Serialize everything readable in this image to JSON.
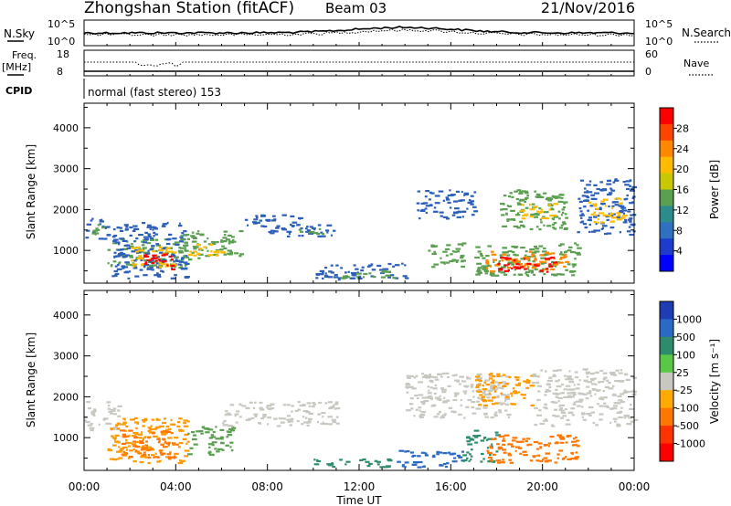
{
  "header": {
    "station": "Zhongshan Station (fitACF)",
    "beam": "Beam 03",
    "date": "21/Nov/2016"
  },
  "top_panels": {
    "nsky_label": "N.Sky",
    "nsky_ticks": [
      "10^5",
      "10^0"
    ],
    "nsearch_label": "N.Search",
    "nsearch_ticks": [
      "10^5",
      "10^0"
    ],
    "freq_label_1": "Freq.",
    "freq_label_2": "[MHz]",
    "freq_ticks": [
      "18",
      "8"
    ],
    "nave_label": "Nave",
    "nave_ticks": [
      "60",
      "0"
    ],
    "cpid_label": "CPID",
    "cpid_text": "normal (fast stereo) 153"
  },
  "chart_data": [
    {
      "type": "heatmap",
      "name": "power-panel",
      "ylabel": "Slant Range [km]",
      "xlabel": "",
      "x_ticks": [
        "00:00",
        "04:00",
        "08:00",
        "12:00",
        "16:00",
        "20:00",
        "00:00"
      ],
      "xlim_hours": [
        0,
        24
      ],
      "y_ticks": [
        1000,
        2000,
        3000,
        4000
      ],
      "ylim": [
        200,
        4600
      ],
      "colorbar": {
        "label": "Power [dB]",
        "ticks": [
          "28",
          "24",
          "20",
          "16",
          "12",
          "8",
          "4"
        ],
        "colors": [
          "#ff0000",
          "#ff4400",
          "#ff8800",
          "#ffbb00",
          "#c8c800",
          "#5aa050",
          "#2c8c8c",
          "#3070c0",
          "#1e3ccc",
          "#0000ff"
        ]
      },
      "regions": [
        {
          "t0": 0.0,
          "t1": 1.0,
          "r0": 1300,
          "r1": 1800,
          "color": "#2c5fb8"
        },
        {
          "t0": 0.3,
          "t1": 1.0,
          "r0": 1350,
          "r1": 1650,
          "color": "#5aa050"
        },
        {
          "t0": 1.0,
          "t1": 4.5,
          "r0": 600,
          "r1": 1300,
          "color": "#5aa050"
        },
        {
          "t0": 1.2,
          "t1": 4.5,
          "r0": 300,
          "r1": 1700,
          "color": "#2c5fb8"
        },
        {
          "t0": 2.0,
          "t1": 4.0,
          "r0": 600,
          "r1": 1100,
          "color": "#ffbb00"
        },
        {
          "t0": 2.5,
          "t1": 3.8,
          "r0": 550,
          "r1": 950,
          "color": "#ff0000"
        },
        {
          "t0": 4.0,
          "t1": 6.8,
          "r0": 800,
          "r1": 1500,
          "color": "#5aa050"
        },
        {
          "t0": 4.5,
          "t1": 6.0,
          "r0": 900,
          "r1": 1200,
          "color": "#ffbb00"
        },
        {
          "t0": 7.0,
          "t1": 9.5,
          "r0": 1600,
          "r1": 1900,
          "color": "#2c5fb8"
        },
        {
          "t0": 8.0,
          "t1": 11.0,
          "r0": 1350,
          "r1": 1650,
          "color": "#2c5fb8"
        },
        {
          "t0": 9.0,
          "t1": 10.5,
          "r0": 1400,
          "r1": 1550,
          "color": "#5aa050"
        },
        {
          "t0": 10.0,
          "t1": 14.0,
          "r0": 300,
          "r1": 700,
          "color": "#2c5fb8"
        },
        {
          "t0": 11.0,
          "t1": 13.5,
          "r0": 320,
          "r1": 520,
          "color": "#5aa050"
        },
        {
          "t0": 14.5,
          "t1": 17.0,
          "r0": 1800,
          "r1": 2500,
          "color": "#2c5fb8"
        },
        {
          "t0": 15.0,
          "t1": 16.5,
          "r0": 600,
          "r1": 1200,
          "color": "#5aa050"
        },
        {
          "t0": 17.0,
          "t1": 21.5,
          "r0": 400,
          "r1": 1200,
          "color": "#5aa050"
        },
        {
          "t0": 17.5,
          "t1": 21.0,
          "r0": 500,
          "r1": 1000,
          "color": "#ff8800"
        },
        {
          "t0": 18.0,
          "t1": 20.5,
          "r0": 500,
          "r1": 850,
          "color": "#ff0000"
        },
        {
          "t0": 18.0,
          "t1": 21.0,
          "r0": 1500,
          "r1": 2500,
          "color": "#5aa050"
        },
        {
          "t0": 19.0,
          "t1": 20.5,
          "r0": 1800,
          "r1": 2200,
          "color": "#ffbb00"
        },
        {
          "t0": 21.5,
          "t1": 24.0,
          "r0": 1400,
          "r1": 2800,
          "color": "#2c5fb8"
        },
        {
          "t0": 22.0,
          "t1": 23.5,
          "r0": 1700,
          "r1": 2300,
          "color": "#ffbb00"
        }
      ]
    },
    {
      "type": "heatmap",
      "name": "velocity-panel",
      "ylabel": "Slant Range [km]",
      "xlabel": "Time UT",
      "x_ticks": [
        "00:00",
        "04:00",
        "08:00",
        "12:00",
        "16:00",
        "20:00",
        "00:00"
      ],
      "xlim_hours": [
        0,
        24
      ],
      "y_ticks": [
        1000,
        2000,
        3000,
        4000
      ],
      "ylim": [
        200,
        4600
      ],
      "colorbar": {
        "label": "Velocity [m s⁻¹]",
        "ticks": [
          "1000",
          "500",
          "100",
          "25",
          "-25",
          "-100",
          "-500",
          "-1000"
        ],
        "colors": [
          "#1e3cb4",
          "#2a6ac4",
          "#2e8c6c",
          "#5ac846",
          "#c8c8c0",
          "#ffaa00",
          "#ff7700",
          "#ff3300",
          "#ff0000"
        ]
      },
      "regions": [
        {
          "t0": 0.0,
          "t1": 1.5,
          "r0": 1200,
          "r1": 1900,
          "color": "#c8c8c0"
        },
        {
          "t0": 1.0,
          "t1": 4.5,
          "r0": 400,
          "r1": 1500,
          "color": "#ff9900"
        },
        {
          "t0": 1.5,
          "t1": 4.0,
          "r0": 500,
          "r1": 1200,
          "color": "#ff7700"
        },
        {
          "t0": 4.5,
          "t1": 6.5,
          "r0": 600,
          "r1": 1300,
          "color": "#5aa050"
        },
        {
          "t0": 6.0,
          "t1": 11.0,
          "r0": 1300,
          "r1": 1900,
          "color": "#c8c8c0"
        },
        {
          "t0": 10.0,
          "t1": 13.5,
          "r0": 300,
          "r1": 500,
          "color": "#2e8c6c"
        },
        {
          "t0": 13.5,
          "t1": 16.5,
          "r0": 300,
          "r1": 700,
          "color": "#2a6ac4"
        },
        {
          "t0": 14.0,
          "t1": 18.5,
          "r0": 1500,
          "r1": 2600,
          "color": "#c8c8c0"
        },
        {
          "t0": 16.5,
          "t1": 18.0,
          "r0": 400,
          "r1": 1200,
          "color": "#2e8c6c"
        },
        {
          "t0": 17.5,
          "t1": 21.5,
          "r0": 400,
          "r1": 1100,
          "color": "#ff7700"
        },
        {
          "t0": 17.0,
          "t1": 19.5,
          "r0": 1800,
          "r1": 2600,
          "color": "#ff9900"
        },
        {
          "t0": 19.5,
          "t1": 24.0,
          "r0": 1300,
          "r1": 2700,
          "color": "#c8c8c0"
        }
      ]
    }
  ]
}
